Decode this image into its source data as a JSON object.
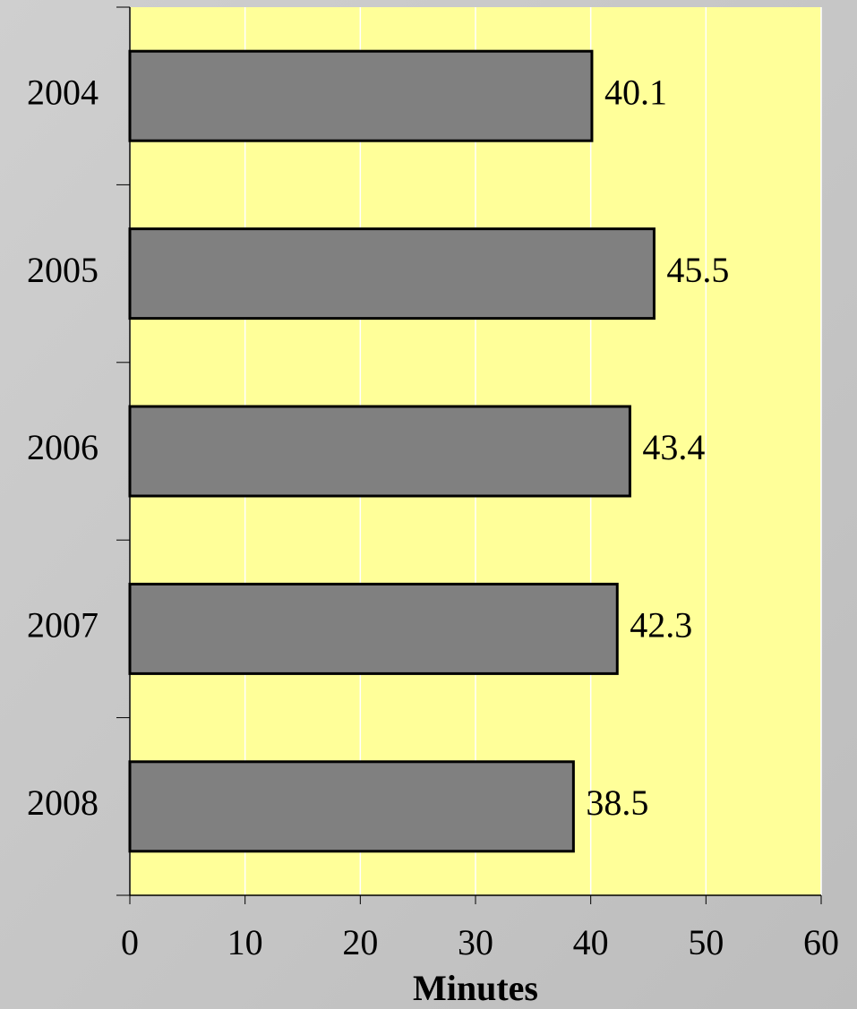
{
  "chart_data": {
    "type": "barh",
    "x_label": "Minutes",
    "categories": [
      "2004",
      "2005",
      "2006",
      "2007",
      "2008"
    ],
    "values": [
      40.1,
      45.5,
      43.4,
      42.3,
      38.5
    ],
    "color": "#808080",
    "plot_color": "#ffff99",
    "xlim": [
      0,
      60
    ],
    "xticks": [
      0,
      10,
      20,
      30,
      40,
      50,
      60
    ],
    "grid": true
  }
}
